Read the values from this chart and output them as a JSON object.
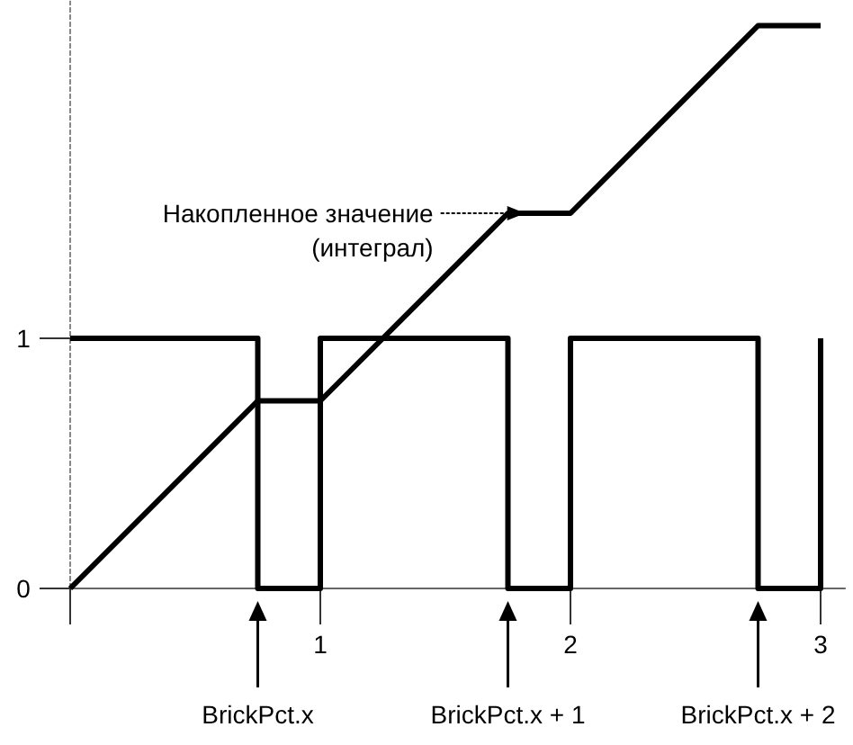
{
  "chart_data": {
    "type": "line",
    "xlim": [
      0,
      3.1
    ],
    "ylim": [
      0,
      2.35
    ],
    "xticks": [
      {
        "value": 0,
        "label": null
      },
      1,
      2,
      3
    ],
    "yticks": [
      0,
      1
    ],
    "grid": false,
    "marker": "none",
    "line_style": "solid",
    "series": [
      {
        "type": "step",
        "color": "#000000",
        "x": [
          0,
          0.75,
          1,
          1.75,
          2,
          2.75,
          3
        ],
        "values": [
          1,
          0,
          1,
          0,
          1,
          0,
          1
        ]
      },
      {
        "type": "line",
        "color": "#000000",
        "x": [
          0,
          0.75,
          1,
          1.75,
          2,
          2.75,
          3
        ],
        "values": [
          0,
          0.75,
          0.75,
          1.5,
          1.5,
          2.25,
          2.25
        ]
      }
    ],
    "annotations": [
      "Накопленное значение (интеграл)",
      "BrickPct.x",
      "BrickPct.x + 1",
      "BrickPct.x + 2"
    ]
  }
}
